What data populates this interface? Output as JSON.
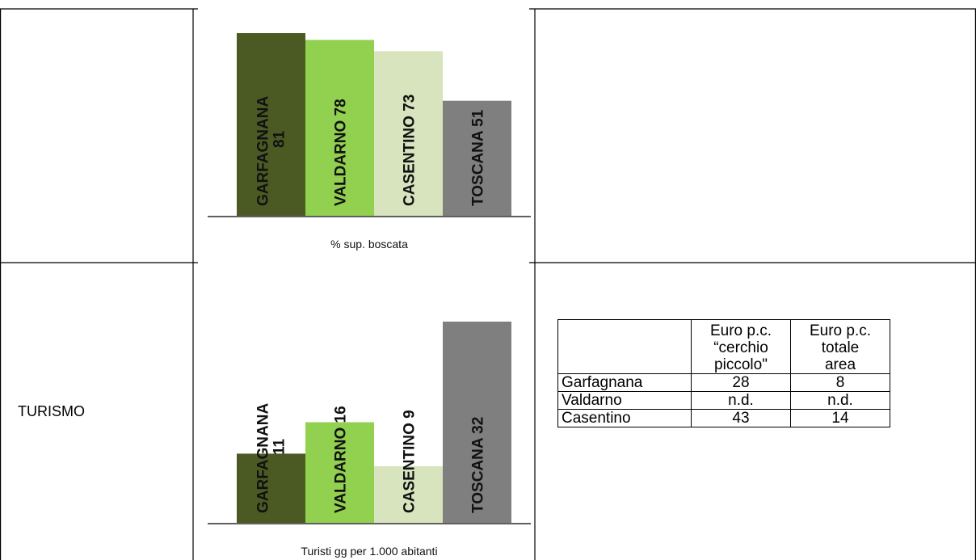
{
  "rows": [
    {
      "label": ""
    },
    {
      "label": "TURISMO"
    }
  ],
  "chart_data": [
    {
      "type": "bar",
      "categories": [
        "GARFAGNANA",
        "VALDARNO",
        "CASENTINO",
        "TOSCANA"
      ],
      "values": [
        81,
        78,
        73,
        51
      ],
      "bar_labels": [
        "GARFAGNANA\n81",
        "VALDARNO 78",
        "CASENTINO 73",
        "TOSCANA 51"
      ],
      "colors": [
        "#4b5a23",
        "#92d050",
        "#d7e4bd",
        "#7f7f7f"
      ],
      "title": "",
      "xlabel": "% sup. boscata",
      "ylabel": "",
      "ylim": [
        0,
        81
      ]
    },
    {
      "type": "bar",
      "categories": [
        "GARFAGNANA",
        "VALDARNO",
        "CASENTINO",
        "TOSCANA"
      ],
      "values": [
        11,
        16,
        9,
        32
      ],
      "bar_labels": [
        "GARFAGNANA\n11",
        "VALDARNO 16",
        "CASENTINO 9",
        "TOSCANA 32"
      ],
      "colors": [
        "#4b5a23",
        "#92d050",
        "#d7e4bd",
        "#7f7f7f"
      ],
      "title": "",
      "xlabel": "Turisti gg per 1.000 abitanti",
      "ylabel": "",
      "ylim": [
        0,
        32
      ]
    }
  ],
  "euro_table": {
    "headers": [
      "",
      "Euro p.c.\n“cerchio\npiccolo\"",
      "Euro p.c.\ntotale\narea"
    ],
    "rows": [
      {
        "name": "Garfagnana",
        "small": "28",
        "total": "8"
      },
      {
        "name": "Valdarno",
        "small": "n.d.",
        "total": "n.d."
      },
      {
        "name": "Casentino",
        "small": "43",
        "total": "14"
      }
    ]
  }
}
